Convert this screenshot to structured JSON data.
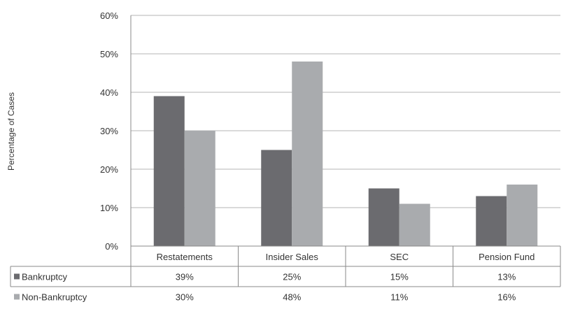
{
  "chart_data": {
    "type": "bar",
    "title": "",
    "xlabel": "",
    "ylabel": "Percentage of Cases",
    "categories": [
      "Restatements",
      "Insider Sales",
      "SEC",
      "Pension Fund"
    ],
    "series": [
      {
        "name": "Bankruptcy",
        "values": [
          39,
          25,
          15,
          13
        ],
        "labels": [
          "39%",
          "25%",
          "15%",
          "13%"
        ],
        "color": "#6b6b6f"
      },
      {
        "name": "Non-Bankruptcy",
        "values": [
          30,
          48,
          11,
          16
        ],
        "labels": [
          "30%",
          "48%",
          "11%",
          "16%"
        ],
        "color": "#a9abae"
      }
    ],
    "ylim": [
      0,
      60
    ],
    "yticks": [
      "0%",
      "10%",
      "20%",
      "30%",
      "40%",
      "50%",
      "60%"
    ],
    "grid": true,
    "legend": "data-table-below"
  }
}
